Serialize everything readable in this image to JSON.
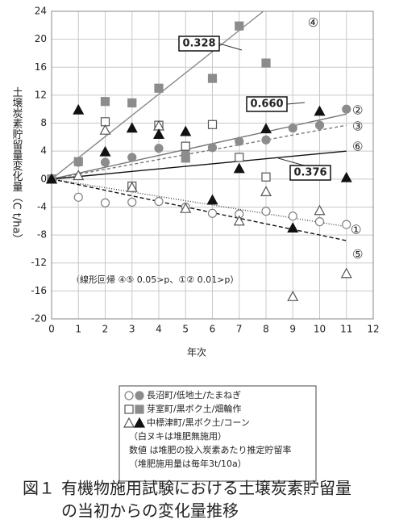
{
  "chart_data": {
    "type": "scatter",
    "x_label": "年次",
    "y_label": "土壌炭素貯留量変化量（C t/ha）",
    "x": [
      0,
      1,
      2,
      3,
      4,
      5,
      6,
      7,
      8,
      9,
      10,
      11
    ],
    "xlim": [
      0,
      12
    ],
    "xticks": [
      0,
      1,
      2,
      3,
      4,
      5,
      6,
      7,
      8,
      9,
      10,
      11,
      12
    ],
    "ylim": [
      -20,
      24
    ],
    "yticks": [
      -20,
      -16,
      -12,
      -8,
      -4,
      0,
      4,
      8,
      12,
      16,
      20,
      24
    ],
    "grid": true,
    "series": [
      {
        "marker": "circle",
        "filled": false,
        "color": "#808080",
        "values": [
          0,
          -2.6,
          -3.4,
          -3.3,
          -3.2,
          -4.0,
          -4.9,
          -5.0,
          -4.6,
          -5.3,
          -6.1,
          -6.5
        ]
      },
      {
        "marker": "circle",
        "filled": true,
        "color": "#8c8c8c",
        "values": [
          0,
          2.4,
          2.4,
          3.1,
          4.4,
          3.6,
          4.5,
          5.4,
          5.6,
          7.3,
          7.7,
          10.0
        ]
      },
      {
        "marker": "square",
        "filled": false,
        "color": "#555555",
        "values": [
          0,
          null,
          8.2,
          -1.0,
          7.7,
          4.7,
          7.8,
          3.1,
          0.3,
          null,
          null,
          null
        ]
      },
      {
        "marker": "square",
        "filled": true,
        "color": "#8c8c8c",
        "values": [
          0,
          2.5,
          11.1,
          10.9,
          13.0,
          3.0,
          14.4,
          21.9,
          16.6,
          null,
          null,
          null
        ]
      },
      {
        "marker": "triangle",
        "filled": false,
        "color": "#555555",
        "values": [
          0,
          0.5,
          7.0,
          -1.2,
          7.6,
          -4.2,
          null,
          -6.0,
          -1.8,
          -16.8,
          -4.5,
          -13.5
        ]
      },
      {
        "marker": "triangle",
        "filled": true,
        "color": "#111111",
        "values": [
          0,
          9.9,
          3.9,
          7.3,
          6.4,
          6.8,
          -3.0,
          1.5,
          7.2,
          -7.0,
          9.7,
          0.2
        ]
      }
    ],
    "trendlines": [
      {
        "label": "①",
        "x": [
          0,
          11
        ],
        "values": [
          0,
          -6.8
        ],
        "color": "#444444",
        "dash": "1,2"
      },
      {
        "label": "②",
        "x": [
          0,
          11
        ],
        "values": [
          0,
          9.3
        ],
        "color": "#777777",
        "dash": "none"
      },
      {
        "label": "③",
        "x": [
          0,
          11
        ],
        "values": [
          0,
          7.7
        ],
        "color": "#777777",
        "dash": "4,3"
      },
      {
        "label": "④",
        "x": [
          0,
          7.9
        ],
        "values": [
          0,
          24
        ],
        "color": "#888888",
        "dash": "none"
      },
      {
        "label": "⑤",
        "x": [
          0,
          11
        ],
        "values": [
          0,
          -8.8
        ],
        "color": "#111111",
        "dash": "5,3"
      },
      {
        "label": "⑥",
        "x": [
          0,
          11
        ],
        "values": [
          0,
          4.0
        ],
        "color": "#111111",
        "dash": "none"
      }
    ],
    "annotations": [
      "0.328",
      "0.660",
      "0.376"
    ],
    "note": "（線形回帰 ④⑤ 0.05>p、①② 0.01>p）",
    "legend": [
      "長沼町/低地土/たまねぎ",
      "芽室町/黒ボク土/畑輪作",
      "中標津町/黒ボク土/コーン"
    ],
    "legend_notes": [
      "（白ヌキは堆肥無施用）",
      "数値 は堆肥の投入炭素あたり推定貯留率",
      "（堆肥施用量は毎年3t/10a）"
    ]
  },
  "caption": {
    "label": "図１",
    "lines": [
      "有機物施用試験における土壌炭素貯留量",
      "の当初からの変化量推移"
    ]
  }
}
